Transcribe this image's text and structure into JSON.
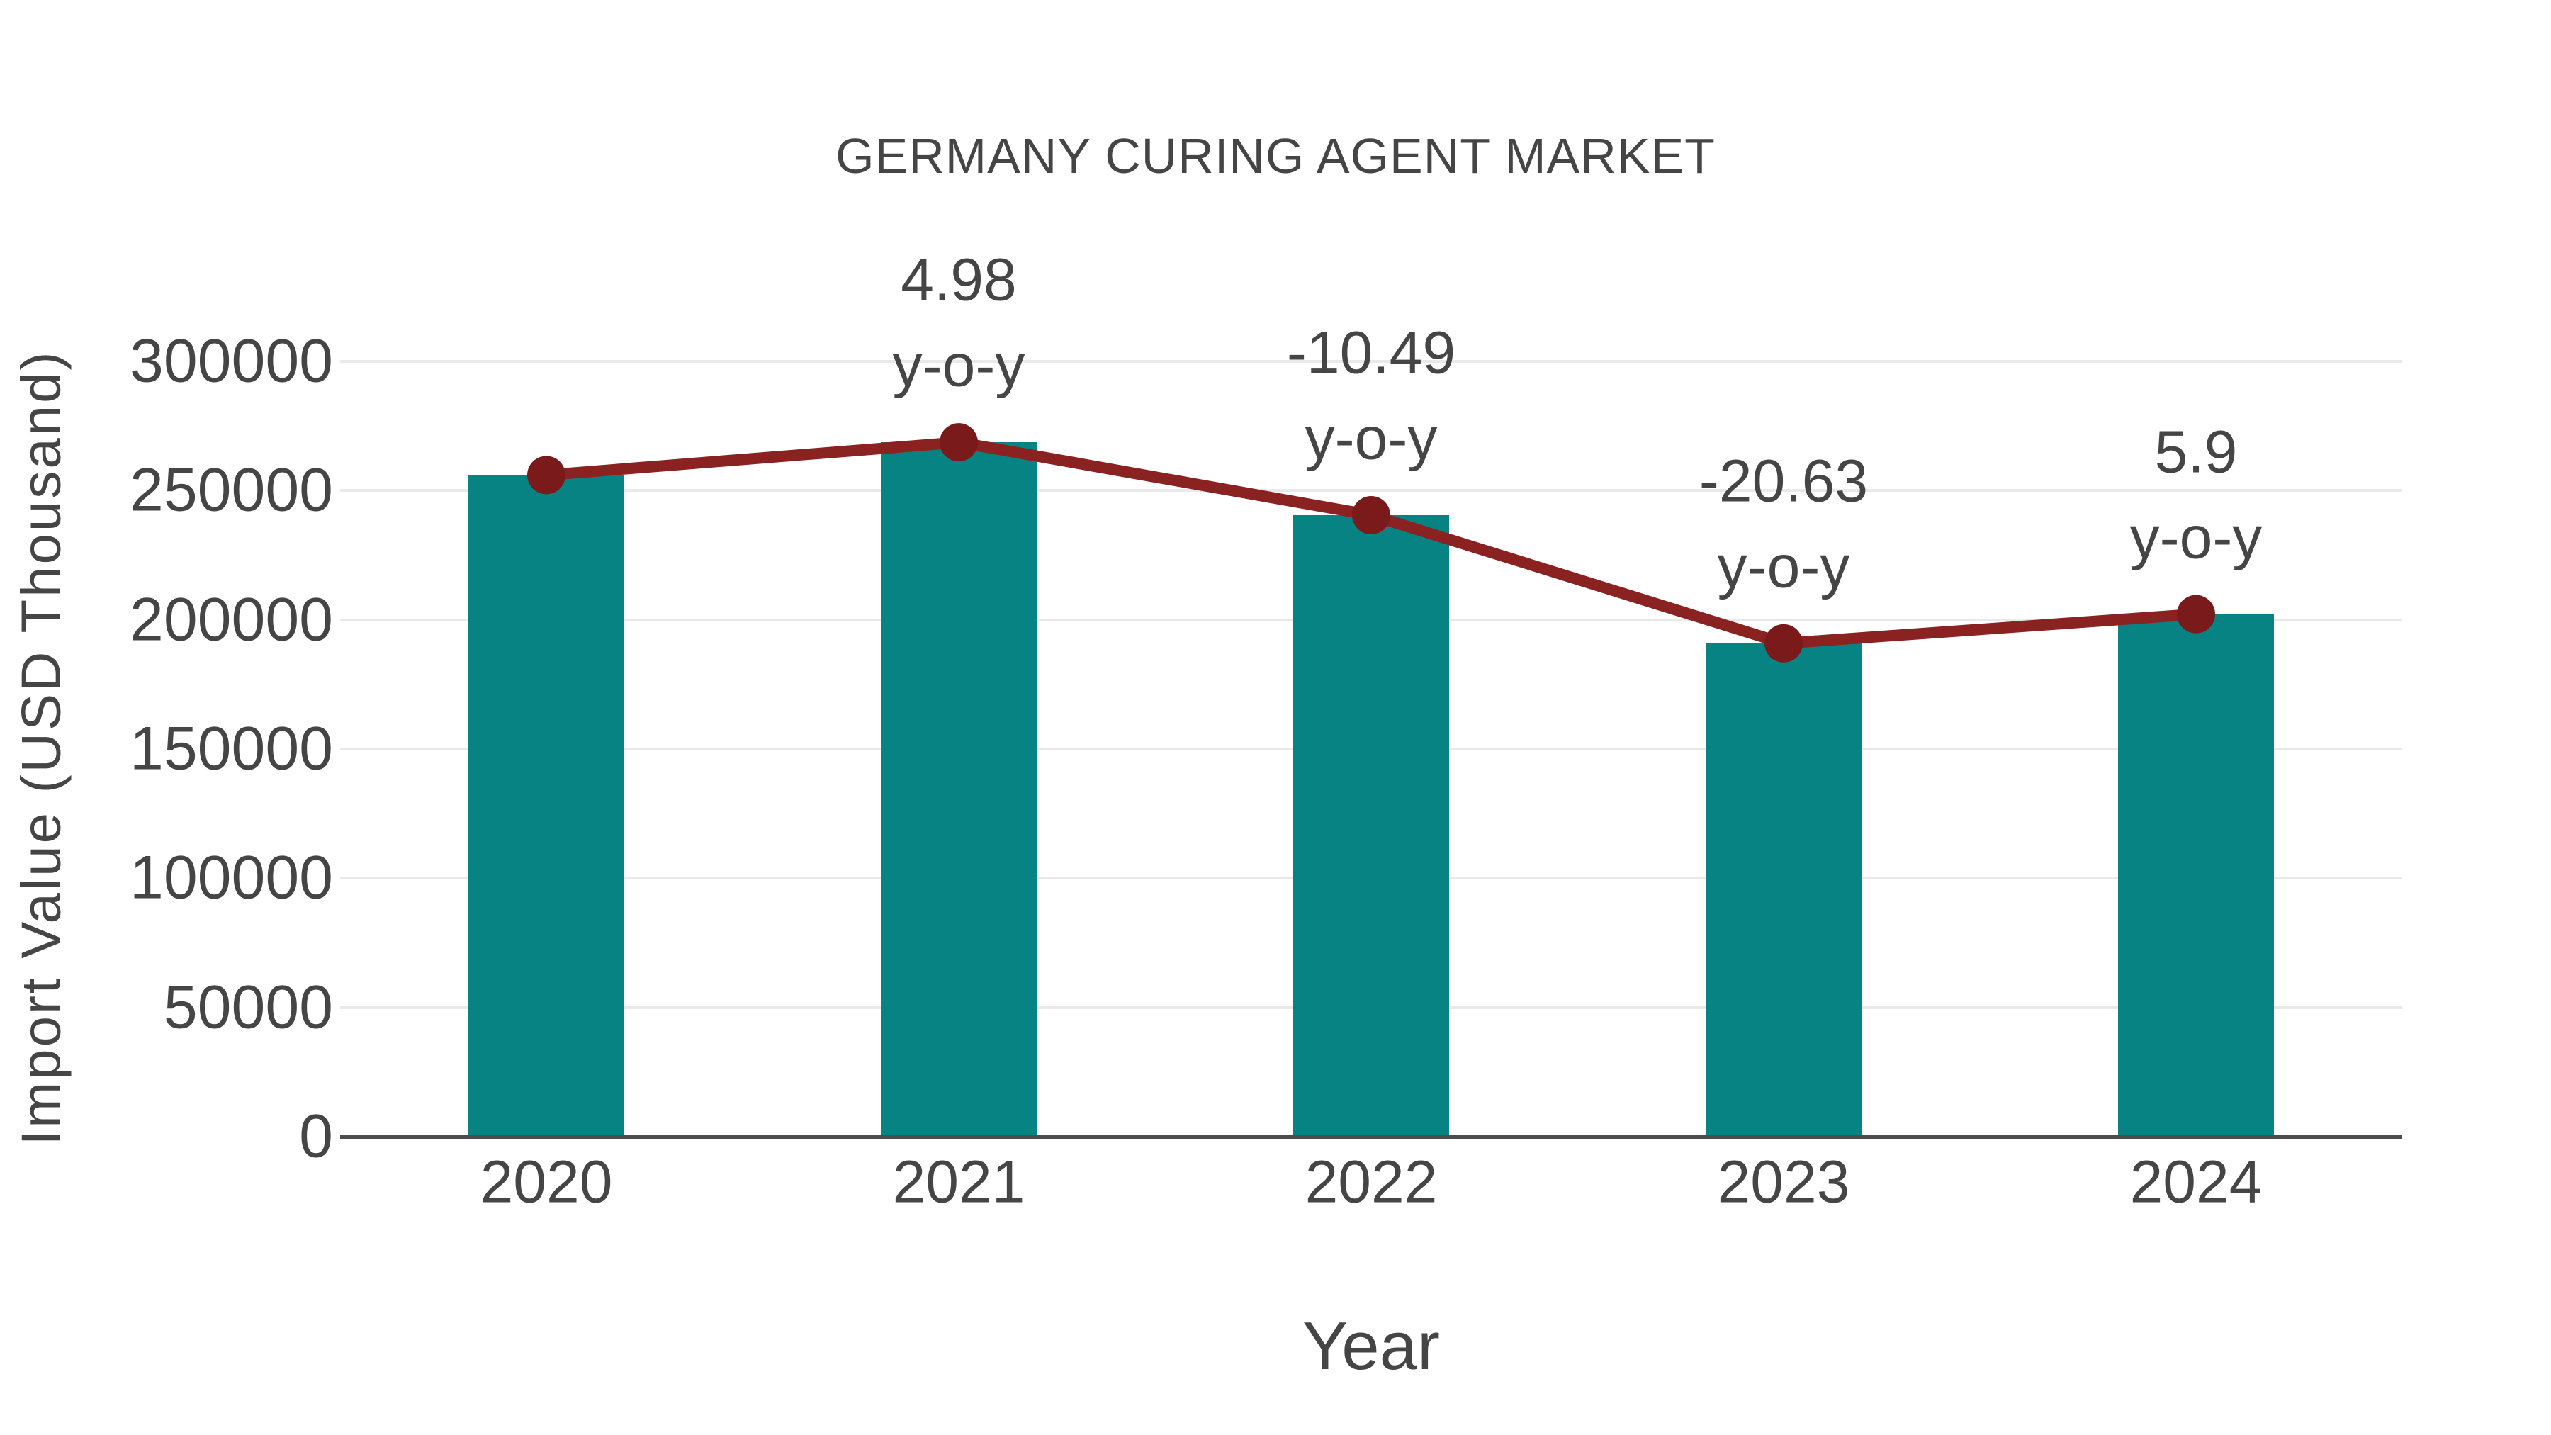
{
  "title": "GERMANY CURING AGENT MARKET",
  "chart_data": {
    "type": "bar",
    "title": "GERMANY CURING AGENT MARKET",
    "xlabel": "Year",
    "ylabel": "Import Value (USD Thousand)",
    "categories": [
      "2020",
      "2021",
      "2022",
      "2023",
      "2024"
    ],
    "series": [
      {
        "name": "Import Value (USD Thousand)",
        "type": "bar",
        "values": [
          256000,
          268700,
          240500,
          190900,
          202200
        ]
      },
      {
        "name": "y-o-y change marker line",
        "type": "line",
        "values": [
          256000,
          268700,
          240500,
          190900,
          202200
        ]
      }
    ],
    "yoy_percent": [
      null,
      4.98,
      -10.49,
      -20.63,
      5.9
    ],
    "annotations": [
      {
        "category": "2021",
        "line1": "4.98",
        "line2": "y-o-y"
      },
      {
        "category": "2022",
        "line1": "-10.49",
        "line2": "y-o-y"
      },
      {
        "category": "2023",
        "line1": "-20.63",
        "line2": "y-o-y"
      },
      {
        "category": "2024",
        "line1": "5.9",
        "line2": "y-o-y"
      }
    ],
    "yticks": [
      0,
      50000,
      100000,
      150000,
      200000,
      250000,
      300000
    ],
    "ylim": [
      0,
      300000
    ],
    "grid": true,
    "legend": "none",
    "colors": {
      "bar": "#088383",
      "line": "#8a2222",
      "marker": "#7a1a1a",
      "gridline": "#e9e9e9",
      "axis": "#4d4d4d",
      "text": "#454545"
    }
  }
}
